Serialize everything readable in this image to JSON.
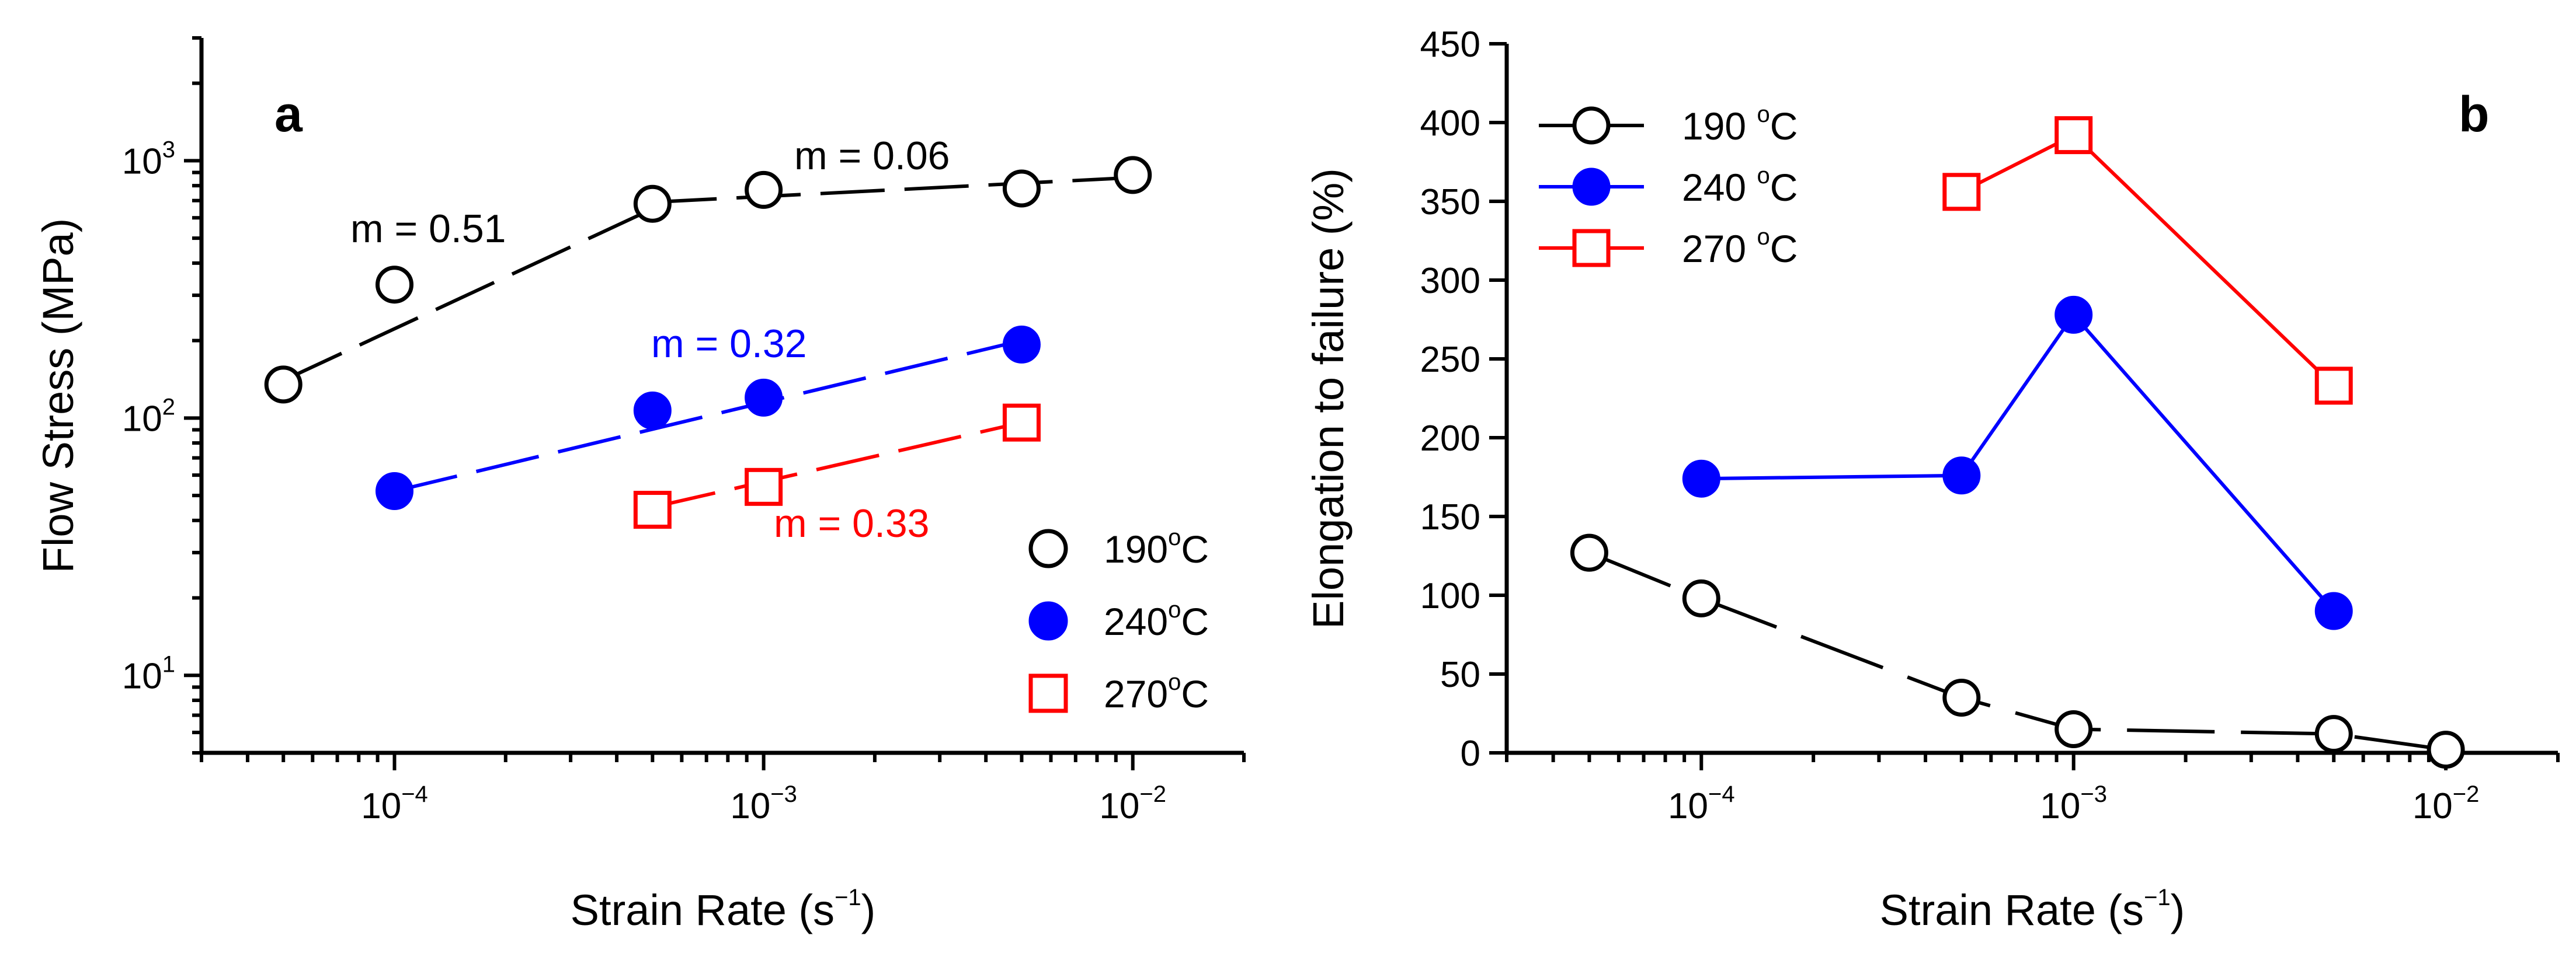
{
  "figure": {
    "panel_a_label": "a",
    "panel_b_label": "b",
    "x_axis_title": "Strain Rate (s",
    "x_axis_title_exp": "−1",
    "x_axis_title_close": ")"
  },
  "chart_data": [
    {
      "type": "scatter",
      "panel": "a",
      "xscale": "log",
      "yscale": "log",
      "xlim": [
        3e-05,
        0.02
      ],
      "ylim": [
        5,
        3000
      ],
      "xlabel": "Strain Rate (s−1)",
      "ylabel": "Flow Stress (MPa)",
      "x_ticks": [
        {
          "value": 0.0001,
          "base": "10",
          "exp": "−4"
        },
        {
          "value": 0.001,
          "base": "10",
          "exp": "−3"
        },
        {
          "value": 0.01,
          "base": "10",
          "exp": "−2"
        }
      ],
      "y_ticks": [
        {
          "value": 10,
          "base": "10",
          "exp": "1"
        },
        {
          "value": 100,
          "base": "10",
          "exp": "2"
        },
        {
          "value": 1000,
          "base": "10",
          "exp": "3"
        }
      ],
      "series": [
        {
          "name": "190 °C",
          "label_num": "190",
          "label_deg": "o",
          "label_unit": "C",
          "marker": "open-circle",
          "color": "#000000",
          "x": [
            5e-05,
            0.0001,
            0.0005,
            0.001,
            0.005,
            0.01
          ],
          "y": [
            135,
            330,
            680,
            770,
            780,
            880
          ]
        },
        {
          "name": "240 °C",
          "label_num": "240",
          "label_deg": "o",
          "label_unit": "C",
          "marker": "filled-circle",
          "color": "#0000ff",
          "x": [
            0.0001,
            0.0005,
            0.001,
            0.005
          ],
          "y": [
            52,
            107,
            120,
            193
          ]
        },
        {
          "name": "270 °C",
          "label_num": "270",
          "label_deg": "o",
          "label_unit": "C",
          "marker": "open-square",
          "color": "#ff0000",
          "x": [
            0.0005,
            0.001,
            0.005
          ],
          "y": [
            44,
            54,
            96
          ]
        }
      ],
      "fit_lines": [
        {
          "color": "#000000",
          "x": [
            5e-05,
            0.0005
          ],
          "y": [
            140,
            650
          ]
        },
        {
          "color": "#000000",
          "x": [
            0.0005,
            0.01
          ],
          "y": [
            690,
            860
          ]
        },
        {
          "color": "#0000ff",
          "x": [
            0.0001,
            0.005
          ],
          "y": [
            52,
            200
          ]
        },
        {
          "color": "#ff0000",
          "x": [
            0.0005,
            0.005
          ],
          "y": [
            45,
            96
          ]
        }
      ],
      "annotations": [
        {
          "text": "m = 0.51",
          "color": "#000000"
        },
        {
          "text": "m = 0.06",
          "color": "#000000"
        },
        {
          "text": "m = 0.32",
          "color": "#0000ff"
        },
        {
          "text": "m = 0.33",
          "color": "#ff0000"
        }
      ],
      "legend_position": "bottom-right"
    },
    {
      "type": "line",
      "panel": "b",
      "xscale": "log",
      "yscale": "linear",
      "xlim": [
        3e-05,
        0.02
      ],
      "ylim": [
        0,
        450
      ],
      "xlabel": "Strain Rate (s−1)",
      "ylabel": "Elongation to failure (%)",
      "x_ticks": [
        {
          "value": 0.0001,
          "base": "10",
          "exp": "−4"
        },
        {
          "value": 0.001,
          "base": "10",
          "exp": "−3"
        },
        {
          "value": 0.01,
          "base": "10",
          "exp": "−2"
        }
      ],
      "y_ticks": [
        0,
        50,
        100,
        150,
        200,
        250,
        300,
        350,
        400,
        450
      ],
      "series": [
        {
          "name": "190 °C",
          "label_num": "190",
          "label_deg": "o",
          "label_unit": "C",
          "marker": "open-circle",
          "color": "#000000",
          "line": "dashed",
          "x": [
            5e-05,
            0.0001,
            0.0005,
            0.001,
            0.005,
            0.01
          ],
          "y": [
            127,
            98,
            35,
            15,
            12,
            2
          ]
        },
        {
          "name": "240 °C",
          "label_num": "240",
          "label_deg": "o",
          "label_unit": "C",
          "marker": "filled-circle",
          "color": "#0000ff",
          "line": "solid",
          "x": [
            0.0001,
            0.0005,
            0.001,
            0.005
          ],
          "y": [
            174,
            176,
            278,
            90
          ]
        },
        {
          "name": "270 °C",
          "label_num": "270",
          "label_deg": "o",
          "label_unit": "C",
          "marker": "open-square",
          "color": "#ff0000",
          "line": "solid",
          "x": [
            0.0005,
            0.001,
            0.005
          ],
          "y": [
            356,
            392,
            233
          ]
        }
      ],
      "legend_position": "top-left"
    }
  ]
}
